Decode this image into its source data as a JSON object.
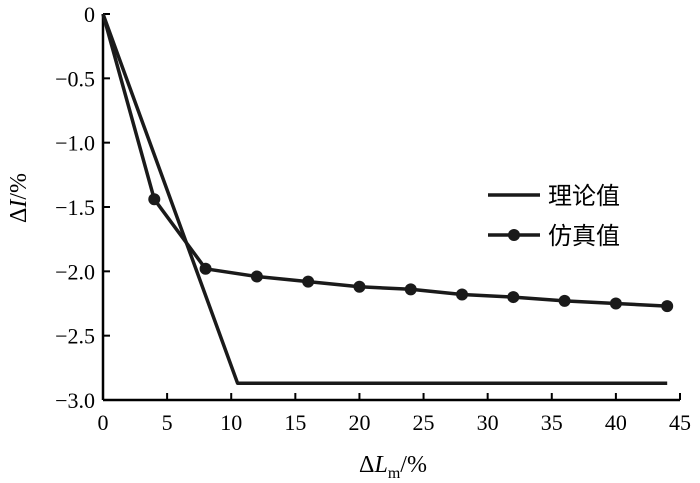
{
  "chart_data": {
    "type": "line",
    "xlim": [
      0,
      45
    ],
    "ylim": [
      -3.0,
      0
    ],
    "x_ticks": [
      0,
      5,
      10,
      15,
      20,
      25,
      30,
      35,
      40,
      45
    ],
    "y_ticks": [
      0,
      -0.5,
      -1.0,
      -1.5,
      -2.0,
      -2.5,
      -3.0
    ],
    "x_tick_labels": [
      "0",
      "5",
      "10",
      "15",
      "20",
      "25",
      "30",
      "35",
      "40",
      "45"
    ],
    "y_tick_labels": [
      "0",
      "−0.5",
      "−1.0",
      "−1.5",
      "−2.0",
      "−2.5",
      "−3.0"
    ],
    "xlabel": {
      "delta": "Δ",
      "var": "L",
      "sub": "m",
      "unit": "/%"
    },
    "ylabel": {
      "delta": "Δ",
      "var": "I",
      "unit": "/%"
    },
    "legend_position": "right",
    "grid": false,
    "series": [
      {
        "name": "理论值",
        "marker": "none",
        "color": "#1a1a1a",
        "x": [
          0,
          10.5,
          44
        ],
        "y": [
          0,
          -2.87,
          -2.87
        ]
      },
      {
        "name": "仿真值",
        "marker": "circle",
        "color": "#1a1a1a",
        "x": [
          0,
          4,
          8,
          12,
          16,
          20,
          24,
          28,
          32,
          36,
          40,
          44
        ],
        "y": [
          0,
          -1.44,
          -1.98,
          -2.04,
          -2.08,
          -2.12,
          -2.14,
          -2.18,
          -2.2,
          -2.23,
          -2.25,
          -2.27
        ]
      }
    ]
  }
}
